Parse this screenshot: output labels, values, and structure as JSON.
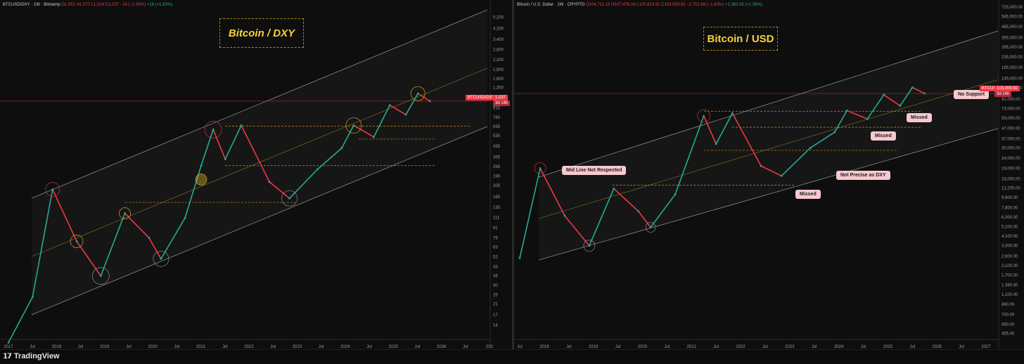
{
  "left": {
    "legend": {
      "symbol": "BTCUSD/DXY · 1W · Bitstamp",
      "o": "O1,051",
      "h": "H1,077",
      "l": "L1,014",
      "c": "C1,037",
      "chg": "−14 (−1.36%)",
      "vol": "+16 (+1.53%)"
    },
    "title": "Bitcoin / DXY",
    "price_tag": "BTCUSD/DXY",
    "price_val": "1,037",
    "price_time": "3d 14h"
  },
  "right": {
    "legend": {
      "symbol": "Bitcoin / U.S. Dollar · 1W · CRYPTO",
      "o": "O104,711.13",
      "h": "H107,476.16",
      "l": "L100,823.81",
      "c": "C103,009.92",
      "chg": "−1,701.68 (−1.63%)",
      "vol": "+1,382.05 (+1.36%)"
    },
    "title": "Bitcoin / USD",
    "price_tag": "BTCUSD",
    "price_val": "103,009.92",
    "price_time": "3d 14h",
    "callouts": {
      "mid_line": "Mid Line Not Respected",
      "not_precise": "Not Precise as DXY",
      "missed1": "Missed",
      "missed2": "Missed",
      "missed3": "Missed",
      "no_support": "No Support"
    }
  },
  "footer": {
    "brand": "TradingView"
  },
  "chart_data": [
    {
      "type": "line",
      "title": "Bitcoin / DXY",
      "y_scale": "log",
      "x_ticks": [
        "2017",
        "Jul",
        "2018",
        "Jul",
        "2019",
        "Jul",
        "2020",
        "Jul",
        "2021",
        "Jul",
        "2022",
        "Jul",
        "2023",
        "Jul",
        "2024",
        "Jul",
        "2025",
        "Jul",
        "2026",
        "Jul",
        "202"
      ],
      "y_ticks": [
        "5,200",
        "4,200",
        "3,400",
        "2,800",
        "2,300",
        "1,900",
        "1,600",
        "1,350",
        "1,110",
        "910",
        "760",
        "635",
        "535",
        "435",
        "355",
        "295",
        "245",
        "205",
        "165",
        "135",
        "111",
        "91",
        "75",
        "63",
        "52",
        "43",
        "36",
        "30",
        "25",
        "21",
        "17",
        "14"
      ],
      "series": [
        {
          "x": [
            "2017-01",
            "2017-07",
            "2017-12",
            "2018-06",
            "2018-12",
            "2019-06",
            "2019-12",
            "2020-03",
            "2020-09",
            "2021-01",
            "2021-04",
            "2021-07",
            "2021-11",
            "2022-06",
            "2022-11",
            "2023-06",
            "2023-12",
            "2024-03",
            "2024-08",
            "2024-12",
            "2025-04",
            "2025-07",
            "2025-10"
          ],
          "y": [
            10,
            24,
            190,
            70,
            36,
            120,
            75,
            50,
            110,
            300,
            600,
            340,
            650,
            220,
            160,
            280,
            420,
            650,
            520,
            960,
            800,
            1200,
            1037
          ]
        }
      ],
      "last_price": 1037,
      "levels": [
        640,
        300,
        148,
        500
      ],
      "grid": false
    },
    {
      "type": "line",
      "title": "Bitcoin / USD",
      "y_scale": "log",
      "x_ticks": [
        "Jul",
        "2018",
        "Jul",
        "2019",
        "Jul",
        "2020",
        "Jul",
        "2021",
        "Jul",
        "2022",
        "Jul",
        "2023",
        "Jul",
        "2024",
        "Jul",
        "2025",
        "Jul",
        "2026",
        "Jul",
        "2027"
      ],
      "y_ticks": [
        "725,000.00",
        "585,000.00",
        "465,000.00",
        "365,000.00",
        "295,000.00",
        "235,000.00",
        "185,000.00",
        "145,000.00",
        "117,000.00",
        "91,000.00",
        "73,000.00",
        "59,000.00",
        "47,000.00",
        "37,000.00",
        "30,000.00",
        "24,000.00",
        "19,000.00",
        "15,000.00",
        "12,200.00",
        "9,800.00",
        "7,800.00",
        "6,300.00",
        "5,100.00",
        "4,100.00",
        "3,300.00",
        "2,600.00",
        "2,100.00",
        "1,700.00",
        "1,360.00",
        "1,100.00",
        "880.00",
        "700.00",
        "560.00",
        "455.00"
      ],
      "series": [
        {
          "x": [
            "2017-07",
            "2017-12",
            "2018-06",
            "2018-12",
            "2019-06",
            "2019-12",
            "2020-03",
            "2020-09",
            "2021-04",
            "2021-07",
            "2021-11",
            "2022-06",
            "2022-11",
            "2023-06",
            "2023-12",
            "2024-03",
            "2024-08",
            "2024-12",
            "2025-04",
            "2025-07",
            "2025-10"
          ],
          "y": [
            2500,
            19000,
            6500,
            3300,
            12000,
            7200,
            5000,
            10500,
            62000,
            33000,
            66000,
            20000,
            16000,
            30000,
            43000,
            70000,
            58000,
            100000,
            78000,
            118000,
            103009.92
          ]
        }
      ],
      "last_price": 103009.92,
      "levels": [
        69000,
        48000,
        28500,
        13000
      ],
      "grid": false
    }
  ]
}
